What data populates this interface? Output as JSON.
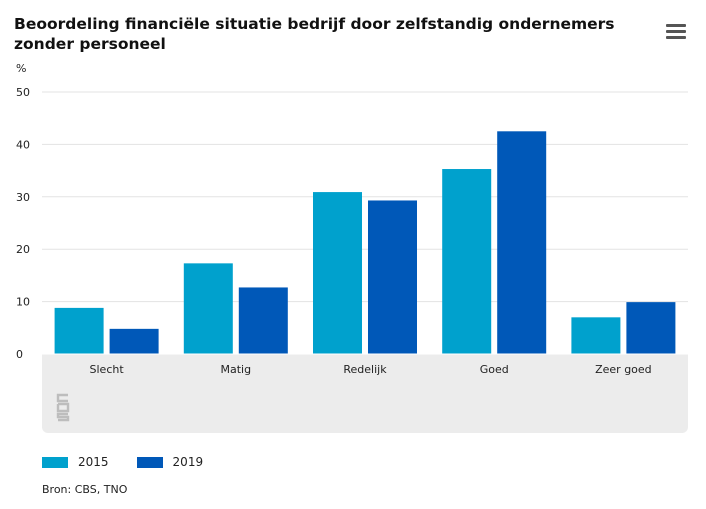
{
  "title": "Beoordeling financiële situatie bedrijf door zelfstandig ondernemers zonder personeel",
  "unit": "%",
  "source": "Bron: CBS, TNO",
  "logo_text": "cbs",
  "colors": {
    "s2015": "#00a1cd",
    "s2019": "#0058b8",
    "grid": "#e3e3e3",
    "band": "#ececec"
  },
  "chart_data": {
    "type": "bar",
    "title": "Beoordeling financiële situatie bedrijf door zelfstandig ondernemers zonder personeel",
    "ylabel": "%",
    "xlabel": "",
    "ylim": [
      0,
      50
    ],
    "yticks": [
      0,
      10,
      20,
      30,
      40,
      50
    ],
    "categories": [
      "Slecht",
      "Matig",
      "Redelijk",
      "Goed",
      "Zeer goed"
    ],
    "series": [
      {
        "name": "2015",
        "color": "#00a1cd",
        "values": [
          8.8,
          17.3,
          30.9,
          35.3,
          7.0
        ]
      },
      {
        "name": "2019",
        "color": "#0058b8",
        "values": [
          4.8,
          12.7,
          29.3,
          42.5,
          9.9
        ]
      }
    ],
    "grid": true,
    "legend": "bottom-left"
  }
}
